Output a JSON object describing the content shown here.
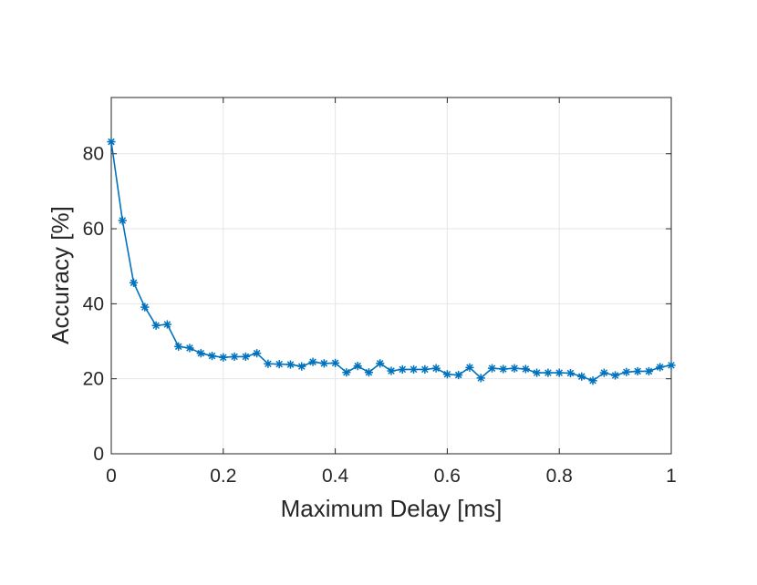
{
  "chart_data": {
    "type": "line",
    "xlabel": "Maximum Delay [ms]",
    "ylabel": "Accuracy [%]",
    "xlim": [
      0,
      1
    ],
    "ylim": [
      0,
      95
    ],
    "xticks": [
      0,
      0.2,
      0.4,
      0.6,
      0.8,
      1
    ],
    "xtick_labels": [
      "0",
      "0.2",
      "0.4",
      "0.6",
      "0.8",
      "1"
    ],
    "yticks": [
      0,
      20,
      40,
      60,
      80
    ],
    "ytick_labels": [
      "0",
      "20",
      "40",
      "60",
      "80"
    ],
    "grid": true,
    "marker": "asterisk",
    "color": "#0072bd",
    "series": [
      {
        "x": [
          0,
          0.02,
          0.04,
          0.06,
          0.08,
          0.1,
          0.12,
          0.14,
          0.16,
          0.18,
          0.2,
          0.22,
          0.24,
          0.26,
          0.28,
          0.3,
          0.32,
          0.34,
          0.36,
          0.38,
          0.4,
          0.42,
          0.44,
          0.46,
          0.48,
          0.5,
          0.52,
          0.54,
          0.56,
          0.58,
          0.6,
          0.62,
          0.64,
          0.66,
          0.68,
          0.7,
          0.72,
          0.74,
          0.76,
          0.78,
          0.8,
          0.82,
          0.84,
          0.86,
          0.88,
          0.9,
          0.92,
          0.94,
          0.96,
          0.98,
          1.0
        ],
        "values": [
          83.2,
          62.2,
          45.6,
          39.1,
          34.2,
          34.5,
          28.6,
          28.2,
          26.8,
          26.1,
          25.7,
          25.9,
          25.9,
          26.8,
          24.0,
          23.9,
          23.8,
          23.3,
          24.5,
          24.1,
          24.2,
          21.7,
          23.4,
          21.7,
          24.1,
          22.1,
          22.5,
          22.5,
          22.5,
          22.8,
          21.2,
          21.0,
          23.0,
          20.2,
          22.8,
          22.6,
          22.8,
          22.6,
          21.6,
          21.6,
          21.6,
          21.5,
          20.6,
          19.5,
          21.6,
          20.9,
          21.8,
          22.0,
          22.0,
          23.1,
          23.6
        ]
      }
    ]
  }
}
